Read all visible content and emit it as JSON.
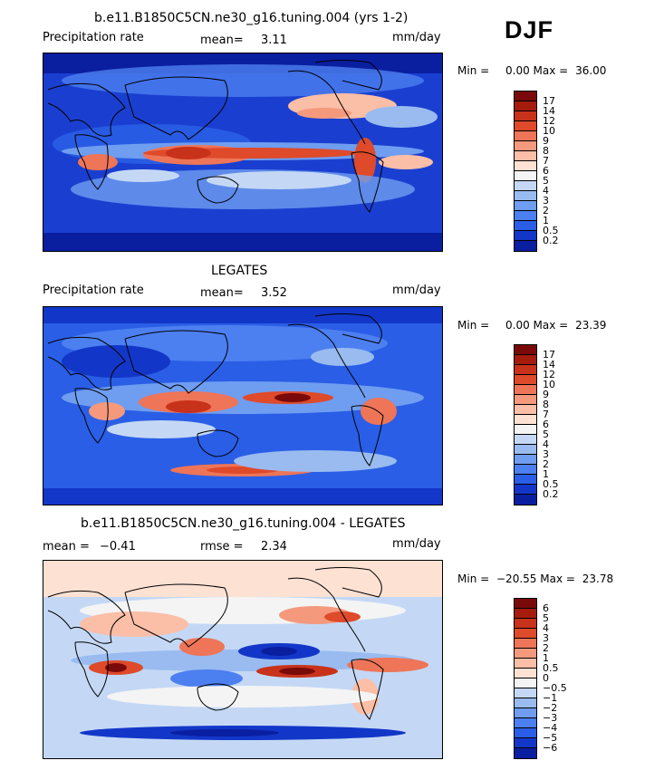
{
  "season": "DJF",
  "panels": [
    {
      "title": "b.e11.B1850C5CN.ne30_g16.tuning.004 (yrs 1-2)",
      "left_label": "Precipitation rate",
      "mid_label": "mean=",
      "mid_value": "3.11",
      "right_label": "mm/day",
      "min_label": "Min =",
      "min_value": "0.00",
      "max_label": "Max =",
      "max_value": "36.00",
      "colorbar": {
        "labels": [
          "17",
          "14",
          "12",
          "10",
          "9",
          "8",
          "7",
          "6",
          "5",
          "4",
          "3",
          "2",
          "1",
          "0.5",
          "0.2"
        ],
        "colors": [
          "#7a0a0a",
          "#a51c0d",
          "#c8321a",
          "#de4a2a",
          "#ee7558",
          "#f5997d",
          "#fbbea6",
          "#fde1d3",
          "#f4f4f4",
          "#c4d8f5",
          "#99bbf0",
          "#6f9df0",
          "#4c7ff0",
          "#2a5ee6",
          "#1237c8",
          "#0a1ea0"
        ]
      }
    },
    {
      "title": "LEGATES",
      "left_label": "Precipitation rate",
      "mid_label": "mean=",
      "mid_value": "3.52",
      "right_label": "mm/day",
      "min_label": "Min =",
      "min_value": "0.00",
      "max_label": "Max =",
      "max_value": "23.39",
      "colorbar": {
        "labels": [
          "17",
          "14",
          "12",
          "10",
          "9",
          "8",
          "7",
          "6",
          "5",
          "4",
          "3",
          "2",
          "1",
          "0.5",
          "0.2"
        ],
        "colors": [
          "#7a0a0a",
          "#a51c0d",
          "#c8321a",
          "#de4a2a",
          "#ee7558",
          "#f5997d",
          "#fbbea6",
          "#fde1d3",
          "#f4f4f4",
          "#c4d8f5",
          "#99bbf0",
          "#6f9df0",
          "#4c7ff0",
          "#2a5ee6",
          "#1237c8",
          "#0a1ea0"
        ]
      }
    },
    {
      "title": "b.e11.B1850C5CN.ne30_g16.tuning.004 - LEGATES",
      "left_label": "mean =",
      "left_value": "−0.41",
      "mid_label": "rmse =",
      "mid_value": "2.34",
      "right_label": "mm/day",
      "min_label": "Min =",
      "min_value": "−20.55",
      "max_label": "Max =",
      "max_value": "23.78",
      "colorbar": {
        "labels": [
          "6",
          "5",
          "4",
          "3",
          "2",
          "1",
          "0.5",
          "0",
          "−0.5",
          "−1",
          "−2",
          "−3",
          "−4",
          "−5",
          "−6"
        ],
        "colors": [
          "#7a0a0a",
          "#a51c0d",
          "#c8321a",
          "#de4a2a",
          "#ee7558",
          "#f5997d",
          "#fbbea6",
          "#fde1d3",
          "#f4f4f4",
          "#c4d8f5",
          "#99bbf0",
          "#6f9df0",
          "#4c7ff0",
          "#2a5ee6",
          "#1237c8",
          "#0a1ea0"
        ]
      }
    }
  ]
}
